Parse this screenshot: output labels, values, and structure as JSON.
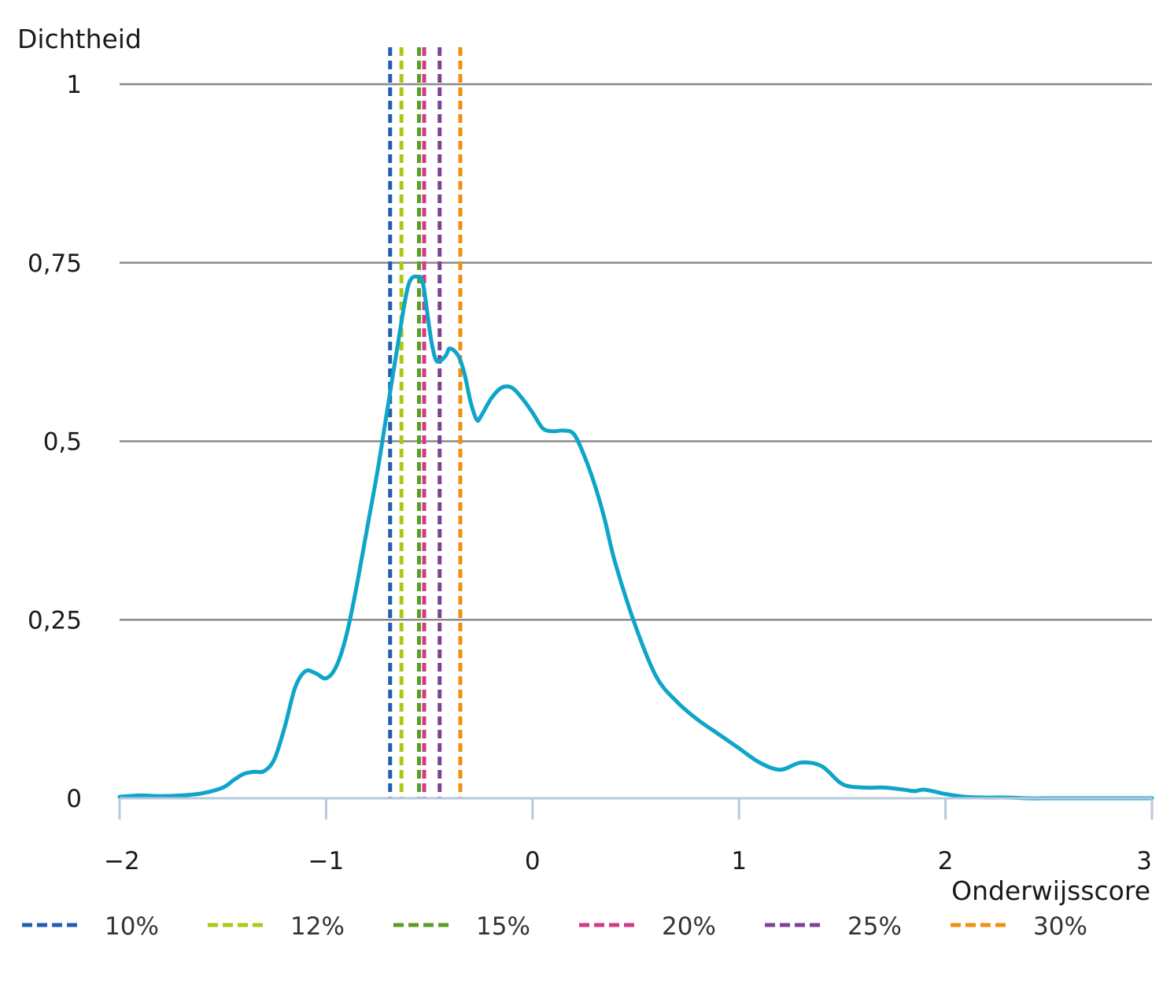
{
  "chart_data": {
    "type": "line",
    "ylabel": "Dichtheid",
    "xlabel": "Onderwijsscore",
    "xlim": [
      -2,
      3
    ],
    "ylim": [
      0,
      1
    ],
    "x_ticks": [
      -2,
      -1,
      0,
      1,
      2,
      3
    ],
    "x_tick_labels": [
      "−2",
      "−1",
      "0",
      "1",
      "2",
      "3"
    ],
    "y_ticks": [
      0,
      0.25,
      0.5,
      0.75,
      1
    ],
    "y_tick_labels": [
      "0",
      "0,25",
      "0,5",
      "0,75",
      "1"
    ],
    "grid": "horizontal",
    "legend_position": "bottom",
    "series": [
      {
        "type": "density",
        "color": "#0ea5c9",
        "x": [
          -2.0,
          -1.9,
          -1.8,
          -1.7,
          -1.6,
          -1.5,
          -1.45,
          -1.4,
          -1.35,
          -1.3,
          -1.25,
          -1.2,
          -1.15,
          -1.1,
          -1.05,
          -1.0,
          -0.95,
          -0.9,
          -0.85,
          -0.8,
          -0.75,
          -0.7,
          -0.65,
          -0.6,
          -0.55,
          -0.53,
          -0.51,
          -0.49,
          -0.47,
          -0.45,
          -0.42,
          -0.4,
          -0.36,
          -0.33,
          -0.3,
          -0.27,
          -0.25,
          -0.2,
          -0.15,
          -0.1,
          -0.05,
          0.0,
          0.05,
          0.1,
          0.15,
          0.2,
          0.25,
          0.3,
          0.35,
          0.4,
          0.5,
          0.6,
          0.7,
          0.8,
          0.9,
          1.0,
          1.1,
          1.2,
          1.3,
          1.4,
          1.5,
          1.6,
          1.7,
          1.8,
          1.85,
          1.9,
          2.0,
          2.1,
          2.2,
          2.3,
          2.4,
          2.5,
          2.6,
          2.7,
          2.8,
          3.0
        ],
        "y": [
          0.002,
          0.004,
          0.003,
          0.004,
          0.007,
          0.015,
          0.025,
          0.034,
          0.037,
          0.038,
          0.055,
          0.1,
          0.155,
          0.178,
          0.175,
          0.168,
          0.185,
          0.23,
          0.3,
          0.38,
          0.46,
          0.55,
          0.64,
          0.72,
          0.73,
          0.72,
          0.68,
          0.64,
          0.615,
          0.612,
          0.62,
          0.63,
          0.62,
          0.595,
          0.555,
          0.53,
          0.535,
          0.56,
          0.575,
          0.575,
          0.56,
          0.54,
          0.518,
          0.514,
          0.515,
          0.51,
          0.48,
          0.44,
          0.39,
          0.33,
          0.24,
          0.17,
          0.135,
          0.11,
          0.09,
          0.07,
          0.05,
          0.04,
          0.05,
          0.045,
          0.02,
          0.015,
          0.015,
          0.012,
          0.01,
          0.012,
          0.006,
          0.002,
          0.001,
          0.001,
          0.0,
          0.0,
          0.0,
          0.0,
          0.0,
          0.0
        ]
      }
    ],
    "thresholds": [
      {
        "label": "10%",
        "x": -0.69,
        "color": "#1e5fb4"
      },
      {
        "label": "12%",
        "x": -0.635,
        "color": "#aac914"
      },
      {
        "label": "15%",
        "x": -0.55,
        "color": "#5a9e23"
      },
      {
        "label": "20%",
        "x": -0.525,
        "color": "#d6378a"
      },
      {
        "label": "25%",
        "x": -0.45,
        "color": "#7b4391"
      },
      {
        "label": "30%",
        "x": -0.35,
        "color": "#f0900f"
      }
    ]
  }
}
